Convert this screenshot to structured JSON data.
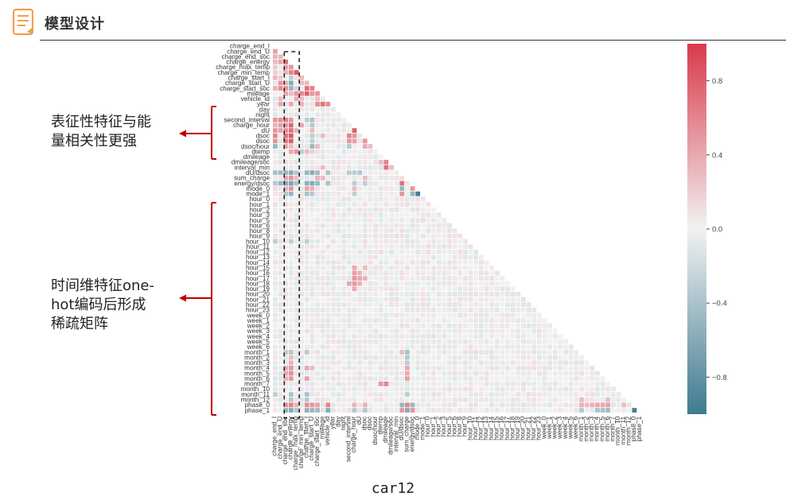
{
  "header": {
    "icon": "document-icon",
    "title": "模型设计",
    "accent_color": "#f0a050"
  },
  "annotations": [
    {
      "lines": [
        "表征性特征与能",
        "量相关性更强"
      ]
    },
    {
      "lines": [
        "时间维特征one-",
        "hot编码后形成",
        "稀疏矩阵"
      ]
    }
  ],
  "annotation_color": "#c00000",
  "caption": "car12",
  "chart_data": {
    "type": "heatmap",
    "variant": "lower-triangle correlation matrix",
    "variables": [
      "charge_end_I",
      "charge_end_U",
      "charge_end_soc",
      "charge_energy",
      "charge_max_temp",
      "charge_min_temp",
      "charge_start_I",
      "charge_start_U",
      "charge_start_soc",
      "mileage",
      "vehicle_id",
      "year",
      "day",
      "night",
      "second_interval",
      "charge_hour",
      "dU",
      "dsoc",
      "dsoc",
      "dsoc/hour",
      "dtemp",
      "dmileage",
      "dmileage/soc",
      "interval_min",
      "dU/dsoc",
      "sum_charge",
      "energy/dsoc",
      "mode_0",
      "mode_1",
      "hour_0",
      "hour_1",
      "hour_2",
      "hour_3",
      "hour_5",
      "hour_6",
      "hour_8",
      "hour_9",
      "hour_10",
      "hour_11",
      "hour_12",
      "hour_13",
      "hour_14",
      "hour_15",
      "hour_16",
      "hour_17",
      "hour_18",
      "hour_19",
      "hour_20",
      "hour_21",
      "hour_22",
      "hour_23",
      "week_0",
      "week_1",
      "week_2",
      "week_3",
      "week_4",
      "week_5",
      "week_6",
      "month_1",
      "month_2",
      "month_3",
      "month_4",
      "month_5",
      "month_6",
      "month_7",
      "month_10",
      "month_11",
      "month_12",
      "phase_0",
      "phase_1"
    ],
    "xlabels": [
      "charge_end_I",
      "charge_end_U",
      "charge_end_soc",
      "charge_energy",
      "charge_max_temp",
      "charge_min_temp",
      "charge_start_I",
      "charge_start_U",
      "charge_start_soc",
      "mileage",
      "vehicle_id",
      "year",
      "day",
      "night",
      "second_interval",
      "charge_hour",
      "dU",
      "dsoc",
      "dsoc",
      "dsoc/hour",
      "dtemp",
      "dmileage",
      "dmileage/soc",
      "interval_min",
      "dU/dsoc",
      "sum_charge",
      "energy/dsoc",
      "mode_0",
      "mode_1",
      "hour_0",
      "hour_1",
      "hour_2",
      "hour_3",
      "hour_5",
      "hour_6",
      "hour_8",
      "hour_9",
      "hour_10",
      "hour_11",
      "hour_12",
      "hour_13",
      "hour_14",
      "hour_15",
      "hour_16",
      "hour_17",
      "hour_18",
      "hour_19",
      "hour_20",
      "hour_21",
      "hour_22",
      "hour_23",
      "week_0",
      "week_1",
      "week_2",
      "week_3",
      "week_4",
      "week_5",
      "week_6",
      "month_1",
      "month_2",
      "month_3",
      "month_4",
      "month_5",
      "month_6",
      "month_7",
      "month_10",
      "month_11",
      "month_12",
      "phase_0",
      "phase_1"
    ],
    "colorbar": {
      "ticks": [
        0.8,
        0.4,
        0.0,
        -0.4,
        -0.8
      ],
      "tick_labels": [
        "0.8",
        "0.4",
        "0.0",
        "−0.4",
        "−0.8"
      ],
      "vmin": -1.0,
      "vmax": 1.0,
      "colors": {
        "low": "#3f7a8f",
        "mid": "#f2f2f2",
        "high": "#d93a4b"
      }
    },
    "legend": "colorbar-right",
    "highlighted_columns": [
      "charge_end_soc",
      "charge_energy",
      "charge_max_temp"
    ],
    "cells": [
      {
        "r": 1,
        "c": 0,
        "v": 0.45
      },
      {
        "r": 2,
        "c": 0,
        "v": 0.35
      },
      {
        "r": 2,
        "c": 1,
        "v": 0.3
      },
      {
        "r": 3,
        "c": 0,
        "v": 0.3
      },
      {
        "r": 3,
        "c": 1,
        "v": 0.4
      },
      {
        "r": 3,
        "c": 2,
        "v": 0.7
      },
      {
        "r": 4,
        "c": 0,
        "v": 0.2
      },
      {
        "r": 4,
        "c": 2,
        "v": 0.45
      },
      {
        "r": 4,
        "c": 3,
        "v": 0.5
      },
      {
        "r": 5,
        "c": 0,
        "v": 0.2
      },
      {
        "r": 5,
        "c": 2,
        "v": 0.35
      },
      {
        "r": 5,
        "c": 3,
        "v": 0.6
      },
      {
        "r": 5,
        "c": 4,
        "v": 0.85
      },
      {
        "r": 6,
        "c": 0,
        "v": 0.3
      },
      {
        "r": 6,
        "c": 1,
        "v": 0.2
      },
      {
        "r": 6,
        "c": 3,
        "v": -0.3
      },
      {
        "r": 6,
        "c": 5,
        "v": 0.3
      },
      {
        "r": 7,
        "c": 1,
        "v": 0.5
      },
      {
        "r": 7,
        "c": 2,
        "v": 0.35
      },
      {
        "r": 7,
        "c": 3,
        "v": -0.6
      },
      {
        "r": 7,
        "c": 5,
        "v": 0.3
      },
      {
        "r": 7,
        "c": 6,
        "v": 0.3
      },
      {
        "r": 8,
        "c": 0,
        "v": 0.35
      },
      {
        "r": 8,
        "c": 1,
        "v": 0.55
      },
      {
        "r": 8,
        "c": 2,
        "v": 0.5
      },
      {
        "r": 8,
        "c": 3,
        "v": -0.5
      },
      {
        "r": 8,
        "c": 4,
        "v": 0.2
      },
      {
        "r": 8,
        "c": 6,
        "v": 0.7
      },
      {
        "r": 8,
        "c": 7,
        "v": 0.6
      },
      {
        "r": 9,
        "c": 2,
        "v": 0.4
      },
      {
        "r": 9,
        "c": 3,
        "v": 0.3
      },
      {
        "r": 9,
        "c": 4,
        "v": 0.5
      },
      {
        "r": 9,
        "c": 5,
        "v": 0.6
      },
      {
        "r": 9,
        "c": 6,
        "v": 0.8
      },
      {
        "r": 9,
        "c": 7,
        "v": 0.5
      },
      {
        "r": 9,
        "c": 8,
        "v": 0.5
      },
      {
        "r": 10,
        "c": 1,
        "v": 0.3
      },
      {
        "r": 10,
        "c": 4,
        "v": 0.4
      },
      {
        "r": 10,
        "c": 5,
        "v": 0.3
      },
      {
        "r": 10,
        "c": 8,
        "v": 0.3
      },
      {
        "r": 11,
        "c": 1,
        "v": 0.4
      },
      {
        "r": 11,
        "c": 3,
        "v": 0.4
      },
      {
        "r": 11,
        "c": 5,
        "v": 0.35
      },
      {
        "r": 11,
        "c": 8,
        "v": 0.55
      },
      {
        "r": 11,
        "c": 9,
        "v": 0.7
      },
      {
        "r": 11,
        "c": 10,
        "v": 0.55
      },
      {
        "r": 14,
        "c": 0,
        "v": 0.5
      },
      {
        "r": 14,
        "c": 1,
        "v": 0.55
      },
      {
        "r": 14,
        "c": 2,
        "v": 0.6
      },
      {
        "r": 14,
        "c": 3,
        "v": 0.5
      },
      {
        "r": 14,
        "c": 6,
        "v": -0.3
      },
      {
        "r": 14,
        "c": 7,
        "v": -0.4
      },
      {
        "r": 15,
        "c": 0,
        "v": 0.35
      },
      {
        "r": 15,
        "c": 1,
        "v": 0.45
      },
      {
        "r": 15,
        "c": 2,
        "v": 0.5
      },
      {
        "r": 15,
        "c": 3,
        "v": 0.75
      },
      {
        "r": 15,
        "c": 5,
        "v": 0.4
      },
      {
        "r": 15,
        "c": 7,
        "v": -0.35
      },
      {
        "r": 16,
        "c": 0,
        "v": 0.5
      },
      {
        "r": 16,
        "c": 1,
        "v": 0.45
      },
      {
        "r": 16,
        "c": 2,
        "v": 0.55
      },
      {
        "r": 16,
        "c": 3,
        "v": 0.7
      },
      {
        "r": 16,
        "c": 4,
        "v": 0.35
      },
      {
        "r": 16,
        "c": 7,
        "v": 0.3
      },
      {
        "r": 16,
        "c": 15,
        "v": 0.8
      },
      {
        "r": 17,
        "c": 0,
        "v": 0.6
      },
      {
        "r": 17,
        "c": 2,
        "v": 0.7
      },
      {
        "r": 17,
        "c": 3,
        "v": 0.85
      },
      {
        "r": 17,
        "c": 7,
        "v": -0.3
      },
      {
        "r": 17,
        "c": 9,
        "v": 0.3
      },
      {
        "r": 17,
        "c": 14,
        "v": 0.6
      },
      {
        "r": 17,
        "c": 15,
        "v": 0.5
      },
      {
        "r": 18,
        "c": 0,
        "v": 0.5
      },
      {
        "r": 18,
        "c": 2,
        "v": 0.65
      },
      {
        "r": 18,
        "c": 3,
        "v": 0.8
      },
      {
        "r": 18,
        "c": 7,
        "v": -0.3
      },
      {
        "r": 18,
        "c": 14,
        "v": 0.5
      },
      {
        "r": 18,
        "c": 15,
        "v": 0.45
      },
      {
        "r": 18,
        "c": 17,
        "v": 0.5
      },
      {
        "r": 19,
        "c": 0,
        "v": -0.5
      },
      {
        "r": 19,
        "c": 2,
        "v": 0.4
      },
      {
        "r": 19,
        "c": 3,
        "v": 0.3
      },
      {
        "r": 19,
        "c": 7,
        "v": -0.5
      },
      {
        "r": 19,
        "c": 8,
        "v": 0.3
      },
      {
        "r": 19,
        "c": 14,
        "v": -0.35
      },
      {
        "r": 19,
        "c": 17,
        "v": 0.4
      },
      {
        "r": 19,
        "c": 18,
        "v": 0.3
      },
      {
        "r": 20,
        "c": 3,
        "v": 0.4
      },
      {
        "r": 20,
        "c": 4,
        "v": 0.5
      },
      {
        "r": 20,
        "c": 5,
        "v": -0.3
      },
      {
        "r": 20,
        "c": 6,
        "v": 0.3
      },
      {
        "r": 20,
        "c": 7,
        "v": 0.2
      },
      {
        "r": 22,
        "c": 20,
        "v": 0.3
      },
      {
        "r": 22,
        "c": 21,
        "v": 0.6
      },
      {
        "r": 23,
        "c": 9,
        "v": 0.3
      },
      {
        "r": 23,
        "c": 21,
        "v": 0.7
      },
      {
        "r": 23,
        "c": 22,
        "v": 0.3
      },
      {
        "r": 24,
        "c": 0,
        "v": -0.4
      },
      {
        "r": 24,
        "c": 1,
        "v": -0.45
      },
      {
        "r": 24,
        "c": 2,
        "v": -0.5
      },
      {
        "r": 24,
        "c": 3,
        "v": -0.6
      },
      {
        "r": 24,
        "c": 4,
        "v": -0.35
      },
      {
        "r": 24,
        "c": 6,
        "v": -0.5
      },
      {
        "r": 24,
        "c": 7,
        "v": -0.6
      },
      {
        "r": 24,
        "c": 8,
        "v": -0.45
      },
      {
        "r": 24,
        "c": 10,
        "v": -0.4
      },
      {
        "r": 24,
        "c": 14,
        "v": -0.3
      },
      {
        "r": 24,
        "c": 15,
        "v": -0.3
      },
      {
        "r": 24,
        "c": 16,
        "v": -0.35
      },
      {
        "r": 25,
        "c": 2,
        "v": 0.4
      },
      {
        "r": 25,
        "c": 3,
        "v": 0.5
      },
      {
        "r": 25,
        "c": 4,
        "v": 0.3
      },
      {
        "r": 25,
        "c": 8,
        "v": 0.35
      },
      {
        "r": 25,
        "c": 9,
        "v": 0.3
      },
      {
        "r": 25,
        "c": 17,
        "v": 0.3
      },
      {
        "r": 26,
        "c": 0,
        "v": -0.35
      },
      {
        "r": 26,
        "c": 1,
        "v": -0.5
      },
      {
        "r": 26,
        "c": 2,
        "v": -0.6
      },
      {
        "r": 26,
        "c": 3,
        "v": -0.65
      },
      {
        "r": 26,
        "c": 4,
        "v": -0.4
      },
      {
        "r": 26,
        "c": 6,
        "v": -0.55
      },
      {
        "r": 26,
        "c": 7,
        "v": -0.6
      },
      {
        "r": 26,
        "c": 8,
        "v": -0.5
      },
      {
        "r": 26,
        "c": 10,
        "v": -0.4
      },
      {
        "r": 26,
        "c": 15,
        "v": -0.3
      },
      {
        "r": 26,
        "c": 17,
        "v": -0.3
      },
      {
        "r": 26,
        "c": 24,
        "v": 0.7
      },
      {
        "r": 27,
        "c": 2,
        "v": 0.35
      },
      {
        "r": 27,
        "c": 3,
        "v": 0.5
      },
      {
        "r": 27,
        "c": 6,
        "v": 0.4
      },
      {
        "r": 27,
        "c": 7,
        "v": 0.35
      },
      {
        "r": 27,
        "c": 15,
        "v": 0.3
      },
      {
        "r": 27,
        "c": 24,
        "v": -0.5
      },
      {
        "r": 27,
        "c": 26,
        "v": 0.5
      },
      {
        "r": 28,
        "c": 2,
        "v": -0.35
      },
      {
        "r": 28,
        "c": 3,
        "v": -0.5
      },
      {
        "r": 28,
        "c": 6,
        "v": -0.4
      },
      {
        "r": 28,
        "c": 7,
        "v": -0.35
      },
      {
        "r": 28,
        "c": 15,
        "v": -0.3
      },
      {
        "r": 28,
        "c": 24,
        "v": 0.5
      },
      {
        "r": 28,
        "c": 26,
        "v": -0.5
      },
      {
        "r": 28,
        "c": 27,
        "v": -0.95
      },
      {
        "r": 37,
        "c": 0,
        "v": -0.3
      },
      {
        "r": 37,
        "c": 3,
        "v": -0.3
      },
      {
        "r": 37,
        "c": 6,
        "v": -0.3
      },
      {
        "r": 42,
        "c": 15,
        "v": 0.4
      },
      {
        "r": 42,
        "c": 17,
        "v": 0.3
      },
      {
        "r": 43,
        "c": 15,
        "v": 0.45
      },
      {
        "r": 43,
        "c": 16,
        "v": 0.35
      },
      {
        "r": 44,
        "c": 15,
        "v": 0.5
      },
      {
        "r": 44,
        "c": 16,
        "v": 0.4
      },
      {
        "r": 44,
        "c": 17,
        "v": 0.35
      },
      {
        "r": 45,
        "c": 14,
        "v": 0.4
      },
      {
        "r": 45,
        "c": 15,
        "v": 0.5
      },
      {
        "r": 45,
        "c": 16,
        "v": 0.35
      },
      {
        "r": 46,
        "c": 15,
        "v": 0.4
      },
      {
        "r": 58,
        "c": 2,
        "v": -0.3
      },
      {
        "r": 58,
        "c": 3,
        "v": -0.35
      },
      {
        "r": 58,
        "c": 6,
        "v": -0.35
      },
      {
        "r": 58,
        "c": 24,
        "v": 0.3
      },
      {
        "r": 58,
        "c": 25,
        "v": -0.4
      },
      {
        "r": 59,
        "c": 3,
        "v": 0.3
      },
      {
        "r": 59,
        "c": 25,
        "v": -0.35
      },
      {
        "r": 60,
        "c": 3,
        "v": 0.35
      },
      {
        "r": 60,
        "c": 25,
        "v": -0.3
      },
      {
        "r": 61,
        "c": 2,
        "v": 0.4
      },
      {
        "r": 61,
        "c": 3,
        "v": 0.5
      },
      {
        "r": 61,
        "c": 6,
        "v": 0.4
      },
      {
        "r": 61,
        "c": 7,
        "v": 0.3
      },
      {
        "r": 61,
        "c": 25,
        "v": 0.4
      },
      {
        "r": 62,
        "c": 2,
        "v": 0.4
      },
      {
        "r": 62,
        "c": 3,
        "v": 0.55
      },
      {
        "r": 62,
        "c": 25,
        "v": 0.4
      },
      {
        "r": 63,
        "c": 2,
        "v": 0.35
      },
      {
        "r": 63,
        "c": 3,
        "v": 0.5
      },
      {
        "r": 63,
        "c": 6,
        "v": 0.45
      },
      {
        "r": 63,
        "c": 25,
        "v": 0.45
      },
      {
        "r": 64,
        "c": 20,
        "v": 0.5
      },
      {
        "r": 64,
        "c": 21,
        "v": 0.6
      },
      {
        "r": 66,
        "c": 0,
        "v": -0.3
      },
      {
        "r": 66,
        "c": 3,
        "v": -0.4
      },
      {
        "r": 66,
        "c": 6,
        "v": -0.4
      },
      {
        "r": 66,
        "c": 25,
        "v": -0.3
      },
      {
        "r": 67,
        "c": 3,
        "v": -0.35
      },
      {
        "r": 67,
        "c": 6,
        "v": -0.35
      },
      {
        "r": 67,
        "c": 58,
        "v": 0.3
      },
      {
        "r": 67,
        "c": 63,
        "v": 0.3
      },
      {
        "r": 68,
        "c": 2,
        "v": 0.5
      },
      {
        "r": 68,
        "c": 3,
        "v": 0.6
      },
      {
        "r": 68,
        "c": 4,
        "v": 0.35
      },
      {
        "r": 68,
        "c": 6,
        "v": 0.55
      },
      {
        "r": 68,
        "c": 7,
        "v": 0.5
      },
      {
        "r": 68,
        "c": 8,
        "v": 0.45
      },
      {
        "r": 68,
        "c": 10,
        "v": 0.6
      },
      {
        "r": 68,
        "c": 15,
        "v": 0.35
      },
      {
        "r": 68,
        "c": 17,
        "v": 0.35
      },
      {
        "r": 68,
        "c": 24,
        "v": -0.5
      },
      {
        "r": 68,
        "c": 25,
        "v": 0.6
      },
      {
        "r": 68,
        "c": 26,
        "v": -0.5
      },
      {
        "r": 68,
        "c": 58,
        "v": 0.35
      },
      {
        "r": 68,
        "c": 59,
        "v": 0.3
      },
      {
        "r": 68,
        "c": 60,
        "v": 0.35
      },
      {
        "r": 68,
        "c": 61,
        "v": 0.4
      },
      {
        "r": 68,
        "c": 62,
        "v": 0.4
      },
      {
        "r": 68,
        "c": 63,
        "v": 0.45
      },
      {
        "r": 68,
        "c": 66,
        "v": 0.3
      },
      {
        "r": 69,
        "c": 2,
        "v": -0.5
      },
      {
        "r": 69,
        "c": 3,
        "v": -0.6
      },
      {
        "r": 69,
        "c": 4,
        "v": -0.35
      },
      {
        "r": 69,
        "c": 6,
        "v": -0.55
      },
      {
        "r": 69,
        "c": 7,
        "v": -0.5
      },
      {
        "r": 69,
        "c": 8,
        "v": -0.45
      },
      {
        "r": 69,
        "c": 10,
        "v": -0.6
      },
      {
        "r": 69,
        "c": 15,
        "v": -0.35
      },
      {
        "r": 69,
        "c": 17,
        "v": -0.35
      },
      {
        "r": 69,
        "c": 24,
        "v": 0.5
      },
      {
        "r": 69,
        "c": 25,
        "v": -0.6
      },
      {
        "r": 69,
        "c": 26,
        "v": 0.5
      },
      {
        "r": 69,
        "c": 58,
        "v": -0.35
      },
      {
        "r": 69,
        "c": 61,
        "v": -0.4
      },
      {
        "r": 69,
        "c": 62,
        "v": -0.4
      },
      {
        "r": 69,
        "c": 63,
        "v": -0.45
      },
      {
        "r": 69,
        "c": 68,
        "v": -0.95
      }
    ]
  }
}
